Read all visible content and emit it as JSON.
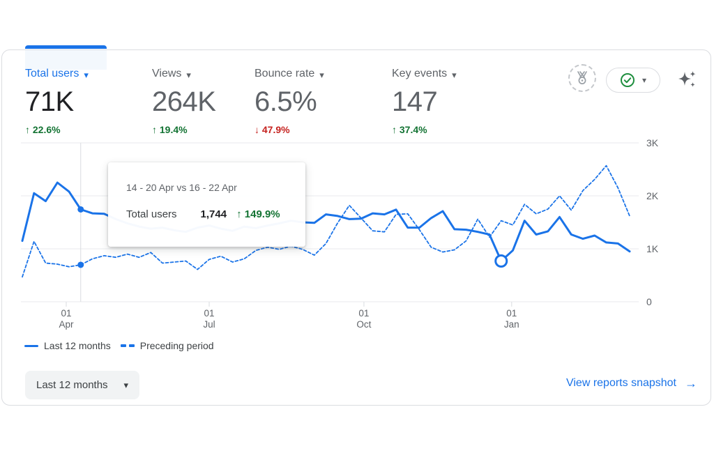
{
  "colors": {
    "accent": "#1a73e8",
    "positive": "#137333",
    "negative": "#c5221f",
    "grid": "#e8eaed",
    "axis_text": "#5f6368"
  },
  "glyphs": {
    "caret": "▾",
    "arrow_up": "↑",
    "arrow_down": "↓",
    "link_arrow": "→"
  },
  "metrics": [
    {
      "label": "Total users",
      "value": "71K",
      "delta": "22.6%",
      "trend": "up",
      "selected": true
    },
    {
      "label": "Views",
      "value": "264K",
      "delta": "19.4%",
      "trend": "up",
      "selected": false
    },
    {
      "label": "Bounce rate",
      "value": "6.5%",
      "delta": "47.9%",
      "trend": "down",
      "selected": false
    },
    {
      "label": "Key events",
      "value": "147",
      "delta": "37.4%",
      "trend": "up",
      "selected": false
    }
  ],
  "tooltip": {
    "date_range": "14 - 20 Apr vs 16 - 22 Apr",
    "metric": "Total users",
    "value": "1,744",
    "delta": "149.9%",
    "trend": "up"
  },
  "legend": [
    {
      "label": "Last 12 months",
      "style": "solid"
    },
    {
      "label": "Preceding period",
      "style": "dashed"
    }
  ],
  "controls": {
    "date_range": "Last 12 months",
    "snapshot_link": "View reports snapshot"
  },
  "chart_data": {
    "type": "line",
    "title": "Total users, last 12 months vs preceding period (weekly)",
    "ylim": [
      0,
      3000
    ],
    "grid": true,
    "legend_position": "bottom-left",
    "y_ticks": [
      {
        "value": 0,
        "label": "0"
      },
      {
        "value": 1000,
        "label": "1K"
      },
      {
        "value": 2000,
        "label": "2K"
      },
      {
        "value": 3000,
        "label": "3K"
      }
    ],
    "x_ticks": [
      {
        "index": 3.76,
        "line1": "01",
        "line2": "Apr"
      },
      {
        "index": 16.0,
        "line1": "01",
        "line2": "Jul"
      },
      {
        "index": 29.25,
        "line1": "01",
        "line2": "Oct"
      },
      {
        "index": 41.9,
        "line1": "01",
        "line2": "Jan"
      }
    ],
    "series": [
      {
        "name": "Last 12 months",
        "style": "solid",
        "values": [
          1150,
          2050,
          1900,
          2250,
          2080,
          1744,
          1670,
          1660,
          1560,
          1480,
          1420,
          1380,
          1400,
          1350,
          1320,
          1400,
          1440,
          1380,
          1340,
          1420,
          1390,
          1440,
          1480,
          1530,
          1500,
          1490,
          1650,
          1620,
          1560,
          1570,
          1670,
          1650,
          1740,
          1400,
          1400,
          1580,
          1710,
          1370,
          1360,
          1320,
          1270,
          770,
          970,
          1530,
          1270,
          1330,
          1600,
          1270,
          1190,
          1250,
          1120,
          1100,
          950
        ]
      },
      {
        "name": "Preceding period",
        "style": "dashed",
        "values": [
          470,
          1140,
          730,
          710,
          660,
          698,
          810,
          870,
          840,
          900,
          840,
          930,
          730,
          750,
          770,
          610,
          800,
          860,
          750,
          810,
          970,
          1030,
          990,
          1050,
          990,
          880,
          1100,
          1490,
          1820,
          1580,
          1340,
          1320,
          1650,
          1660,
          1360,
          1030,
          940,
          980,
          1150,
          1560,
          1220,
          1530,
          1450,
          1840,
          1660,
          1750,
          2000,
          1730,
          2100,
          2310,
          2570,
          2150,
          1620
        ]
      }
    ],
    "hover_index": 5,
    "hover_values": {
      "current": 1744,
      "preceding": 698
    },
    "anomaly": {
      "series_index": 0,
      "point_index": 41
    }
  }
}
